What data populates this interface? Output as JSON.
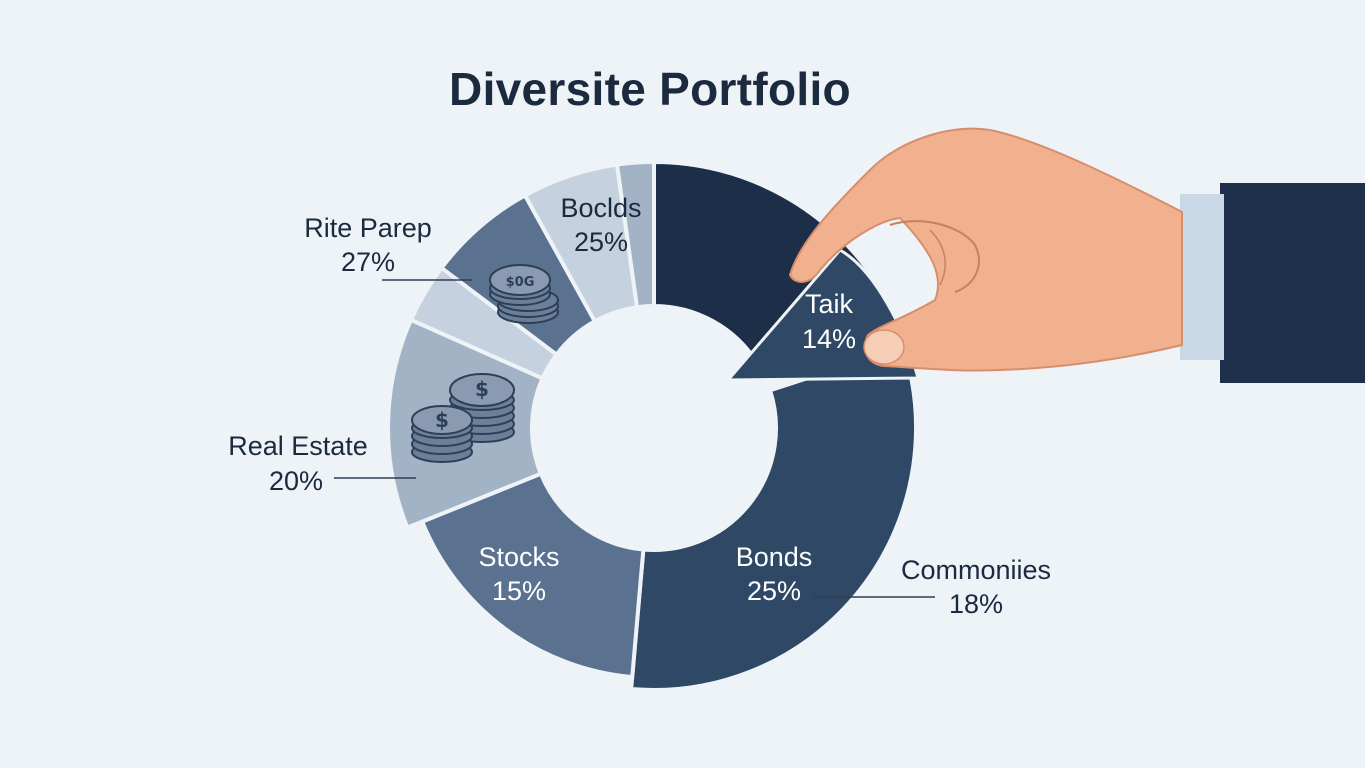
{
  "chart_data": {
    "type": "pie",
    "title": "Diversite Portfolio",
    "slices": [
      {
        "label": "Rite Parep",
        "value": "27%"
      },
      {
        "label": "Boclds",
        "value": "25%"
      },
      {
        "label": "Taik",
        "value": "14%"
      },
      {
        "label": "Bonds",
        "value": "25%"
      },
      {
        "label": "Commoniies",
        "value": "18%"
      },
      {
        "label": "Stocks",
        "value": "15%"
      },
      {
        "label": "Real Estate",
        "value": "20%"
      }
    ],
    "colors": {
      "dark_navy": "#1c2e48",
      "navy": "#2f4866",
      "slate": "#5a7290",
      "light_slate": "#a3b3c6",
      "pale": "#c5d1de",
      "skin": "#f1b08e",
      "sleeve": "#1d2f4a"
    }
  }
}
